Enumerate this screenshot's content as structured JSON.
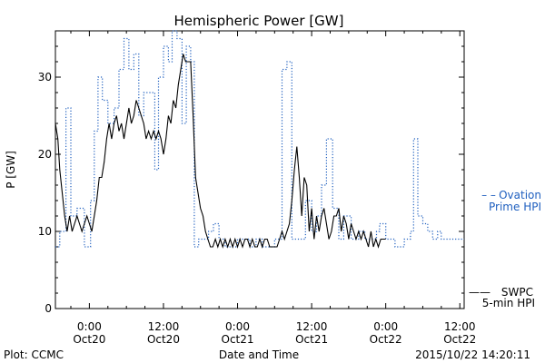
{
  "chart_data": {
    "type": "line",
    "title": "Hemispheric Power [GW]",
    "ylabel": "P [GW]",
    "xlabel": "Date and Time",
    "ylim": [
      0,
      36
    ],
    "yticks": [
      0,
      10,
      20,
      30
    ],
    "x_unit": "hours since 2015-10-19 00:00 UT",
    "xlim": [
      18.5,
      84.7
    ],
    "xticks": [
      {
        "x": 24,
        "time": "0:00",
        "date": "Oct20"
      },
      {
        "x": 36,
        "time": "12:00",
        "date": "Oct20"
      },
      {
        "x": 48,
        "time": "0:00",
        "date": "Oct21"
      },
      {
        "x": 60,
        "time": "12:00",
        "date": "Oct21"
      },
      {
        "x": 72,
        "time": "0:00",
        "date": "Oct22"
      },
      {
        "x": 84,
        "time": "12:00",
        "date": "Oct22"
      }
    ],
    "series": [
      {
        "name": "Ovation Prime HPI",
        "style": "dotted-step",
        "color": "#1f5fbf",
        "points": [
          [
            18.5,
            8
          ],
          [
            19.2,
            10
          ],
          [
            20.2,
            26
          ],
          [
            21.0,
            12
          ],
          [
            22.0,
            13
          ],
          [
            23.2,
            8
          ],
          [
            24.2,
            14
          ],
          [
            24.8,
            23
          ],
          [
            25.4,
            30
          ],
          [
            26.1,
            27
          ],
          [
            27.0,
            24
          ],
          [
            28.0,
            26
          ],
          [
            28.8,
            31
          ],
          [
            29.6,
            35
          ],
          [
            30.4,
            31
          ],
          [
            31.2,
            33
          ],
          [
            32.0,
            25
          ],
          [
            32.8,
            28
          ],
          [
            33.8,
            28
          ],
          [
            34.6,
            18
          ],
          [
            35.2,
            30
          ],
          [
            36.0,
            34
          ],
          [
            36.8,
            32
          ],
          [
            37.4,
            36
          ],
          [
            38.2,
            35
          ],
          [
            39.0,
            24
          ],
          [
            39.7,
            34
          ],
          [
            40.4,
            32
          ],
          [
            41.0,
            8
          ],
          [
            41.7,
            9
          ],
          [
            42.4,
            9
          ],
          [
            43.3,
            10
          ],
          [
            44.1,
            11
          ],
          [
            45.0,
            9
          ],
          [
            46.0,
            8
          ],
          [
            48.0,
            9
          ],
          [
            50.0,
            8
          ],
          [
            51.0,
            9
          ],
          [
            52.0,
            8
          ],
          [
            54.0,
            9
          ],
          [
            55.2,
            31
          ],
          [
            56.0,
            32
          ],
          [
            56.8,
            9
          ],
          [
            58.0,
            9
          ],
          [
            59.0,
            14
          ],
          [
            60.0,
            10
          ],
          [
            60.8,
            12
          ],
          [
            61.6,
            16
          ],
          [
            62.4,
            22
          ],
          [
            63.4,
            13
          ],
          [
            64.4,
            9
          ],
          [
            65.2,
            12
          ],
          [
            66.4,
            9
          ],
          [
            67.6,
            10
          ],
          [
            68.6,
            9
          ],
          [
            69.6,
            9
          ],
          [
            70.5,
            10
          ],
          [
            71.0,
            11
          ],
          [
            72.0,
            9
          ],
          [
            73.5,
            8
          ],
          [
            75.0,
            9
          ],
          [
            76.0,
            10
          ],
          [
            76.5,
            22
          ],
          [
            77.2,
            12
          ],
          [
            78.0,
            11
          ],
          [
            78.8,
            10
          ],
          [
            79.6,
            9
          ],
          [
            80.4,
            10
          ],
          [
            81.0,
            9
          ],
          [
            81.6,
            9
          ],
          [
            82.3,
            9
          ],
          [
            84.7,
            9
          ]
        ]
      },
      {
        "name": "SWPC 5-min HPI",
        "style": "solid",
        "color": "#000000",
        "points": [
          [
            18.5,
            24
          ],
          [
            18.9,
            22
          ],
          [
            19.2,
            18
          ],
          [
            19.6,
            15
          ],
          [
            20.0,
            12
          ],
          [
            20.4,
            10
          ],
          [
            20.8,
            12
          ],
          [
            21.2,
            10
          ],
          [
            21.6,
            11
          ],
          [
            22.0,
            12
          ],
          [
            22.4,
            11
          ],
          [
            22.8,
            10
          ],
          [
            23.2,
            11
          ],
          [
            23.6,
            12
          ],
          [
            24.0,
            11
          ],
          [
            24.4,
            10
          ],
          [
            24.8,
            12
          ],
          [
            25.2,
            14
          ],
          [
            25.6,
            17
          ],
          [
            26.0,
            17
          ],
          [
            26.4,
            19
          ],
          [
            26.8,
            22
          ],
          [
            27.2,
            24
          ],
          [
            27.6,
            22
          ],
          [
            28.0,
            24
          ],
          [
            28.4,
            25
          ],
          [
            28.8,
            23
          ],
          [
            29.2,
            24
          ],
          [
            29.6,
            22
          ],
          [
            30.0,
            24
          ],
          [
            30.4,
            26
          ],
          [
            30.8,
            24
          ],
          [
            31.2,
            25
          ],
          [
            31.6,
            27
          ],
          [
            32.0,
            26
          ],
          [
            32.4,
            25
          ],
          [
            32.8,
            24
          ],
          [
            33.2,
            22
          ],
          [
            33.6,
            23
          ],
          [
            34.0,
            22
          ],
          [
            34.4,
            23
          ],
          [
            34.8,
            22
          ],
          [
            35.2,
            23
          ],
          [
            35.6,
            22
          ],
          [
            36.0,
            20
          ],
          [
            36.4,
            22
          ],
          [
            36.8,
            25
          ],
          [
            37.2,
            24
          ],
          [
            37.6,
            27
          ],
          [
            38.0,
            26
          ],
          [
            38.4,
            29
          ],
          [
            38.8,
            31
          ],
          [
            39.2,
            33
          ],
          [
            39.6,
            32
          ],
          [
            40.0,
            32
          ],
          [
            40.4,
            32
          ],
          [
            40.8,
            25
          ],
          [
            41.2,
            17
          ],
          [
            41.6,
            15
          ],
          [
            42.0,
            13
          ],
          [
            42.4,
            12
          ],
          [
            42.8,
            10
          ],
          [
            43.2,
            9
          ],
          [
            43.6,
            8
          ],
          [
            44.0,
            8
          ],
          [
            44.4,
            9
          ],
          [
            44.8,
            8
          ],
          [
            45.2,
            9
          ],
          [
            45.6,
            8
          ],
          [
            46.0,
            9
          ],
          [
            46.4,
            8
          ],
          [
            46.8,
            9
          ],
          [
            47.2,
            8
          ],
          [
            47.6,
            9
          ],
          [
            48.0,
            8
          ],
          [
            48.4,
            9
          ],
          [
            48.8,
            8
          ],
          [
            49.2,
            9
          ],
          [
            49.6,
            9
          ],
          [
            50.0,
            8
          ],
          [
            50.4,
            9
          ],
          [
            50.8,
            8
          ],
          [
            51.2,
            8
          ],
          [
            51.6,
            9
          ],
          [
            52.0,
            8
          ],
          [
            52.4,
            9
          ],
          [
            52.8,
            9
          ],
          [
            53.2,
            8
          ],
          [
            53.6,
            8
          ],
          [
            54.0,
            8
          ],
          [
            54.4,
            8
          ],
          [
            54.8,
            9
          ],
          [
            55.2,
            10
          ],
          [
            55.6,
            9
          ],
          [
            56.0,
            10
          ],
          [
            56.4,
            11
          ],
          [
            56.8,
            14
          ],
          [
            57.2,
            18
          ],
          [
            57.6,
            21
          ],
          [
            58.0,
            17
          ],
          [
            58.4,
            12
          ],
          [
            58.8,
            17
          ],
          [
            59.2,
            16
          ],
          [
            59.6,
            10
          ],
          [
            60.0,
            13
          ],
          [
            60.4,
            9
          ],
          [
            60.8,
            12
          ],
          [
            61.2,
            10
          ],
          [
            61.6,
            12
          ],
          [
            62.0,
            13
          ],
          [
            62.4,
            11
          ],
          [
            62.8,
            9
          ],
          [
            63.2,
            10
          ],
          [
            63.6,
            12
          ],
          [
            64.0,
            12
          ],
          [
            64.4,
            13
          ],
          [
            64.8,
            10
          ],
          [
            65.2,
            12
          ],
          [
            65.6,
            11
          ],
          [
            66.0,
            9
          ],
          [
            66.4,
            11
          ],
          [
            66.8,
            10
          ],
          [
            67.2,
            9
          ],
          [
            67.6,
            10
          ],
          [
            68.0,
            9
          ],
          [
            68.4,
            10
          ],
          [
            68.8,
            9
          ],
          [
            69.2,
            8
          ],
          [
            69.6,
            10
          ],
          [
            70.0,
            8
          ],
          [
            70.4,
            9
          ],
          [
            70.8,
            8
          ],
          [
            71.2,
            9
          ],
          [
            71.6,
            9
          ],
          [
            72.0,
            9
          ]
        ]
      }
    ],
    "legend": [
      {
        "line": "– –",
        "text1": "Ovation",
        "text2": "Prime HPI",
        "color": "#1f5fbf"
      },
      {
        "line": "——",
        "text1": "SWPC",
        "text2": "5-min HPI",
        "color": "#000000"
      }
    ],
    "legend_position": "right",
    "grid": false
  },
  "footer": {
    "left": "Plot: CCMC",
    "right": "2015/10/22 14:20:11"
  }
}
